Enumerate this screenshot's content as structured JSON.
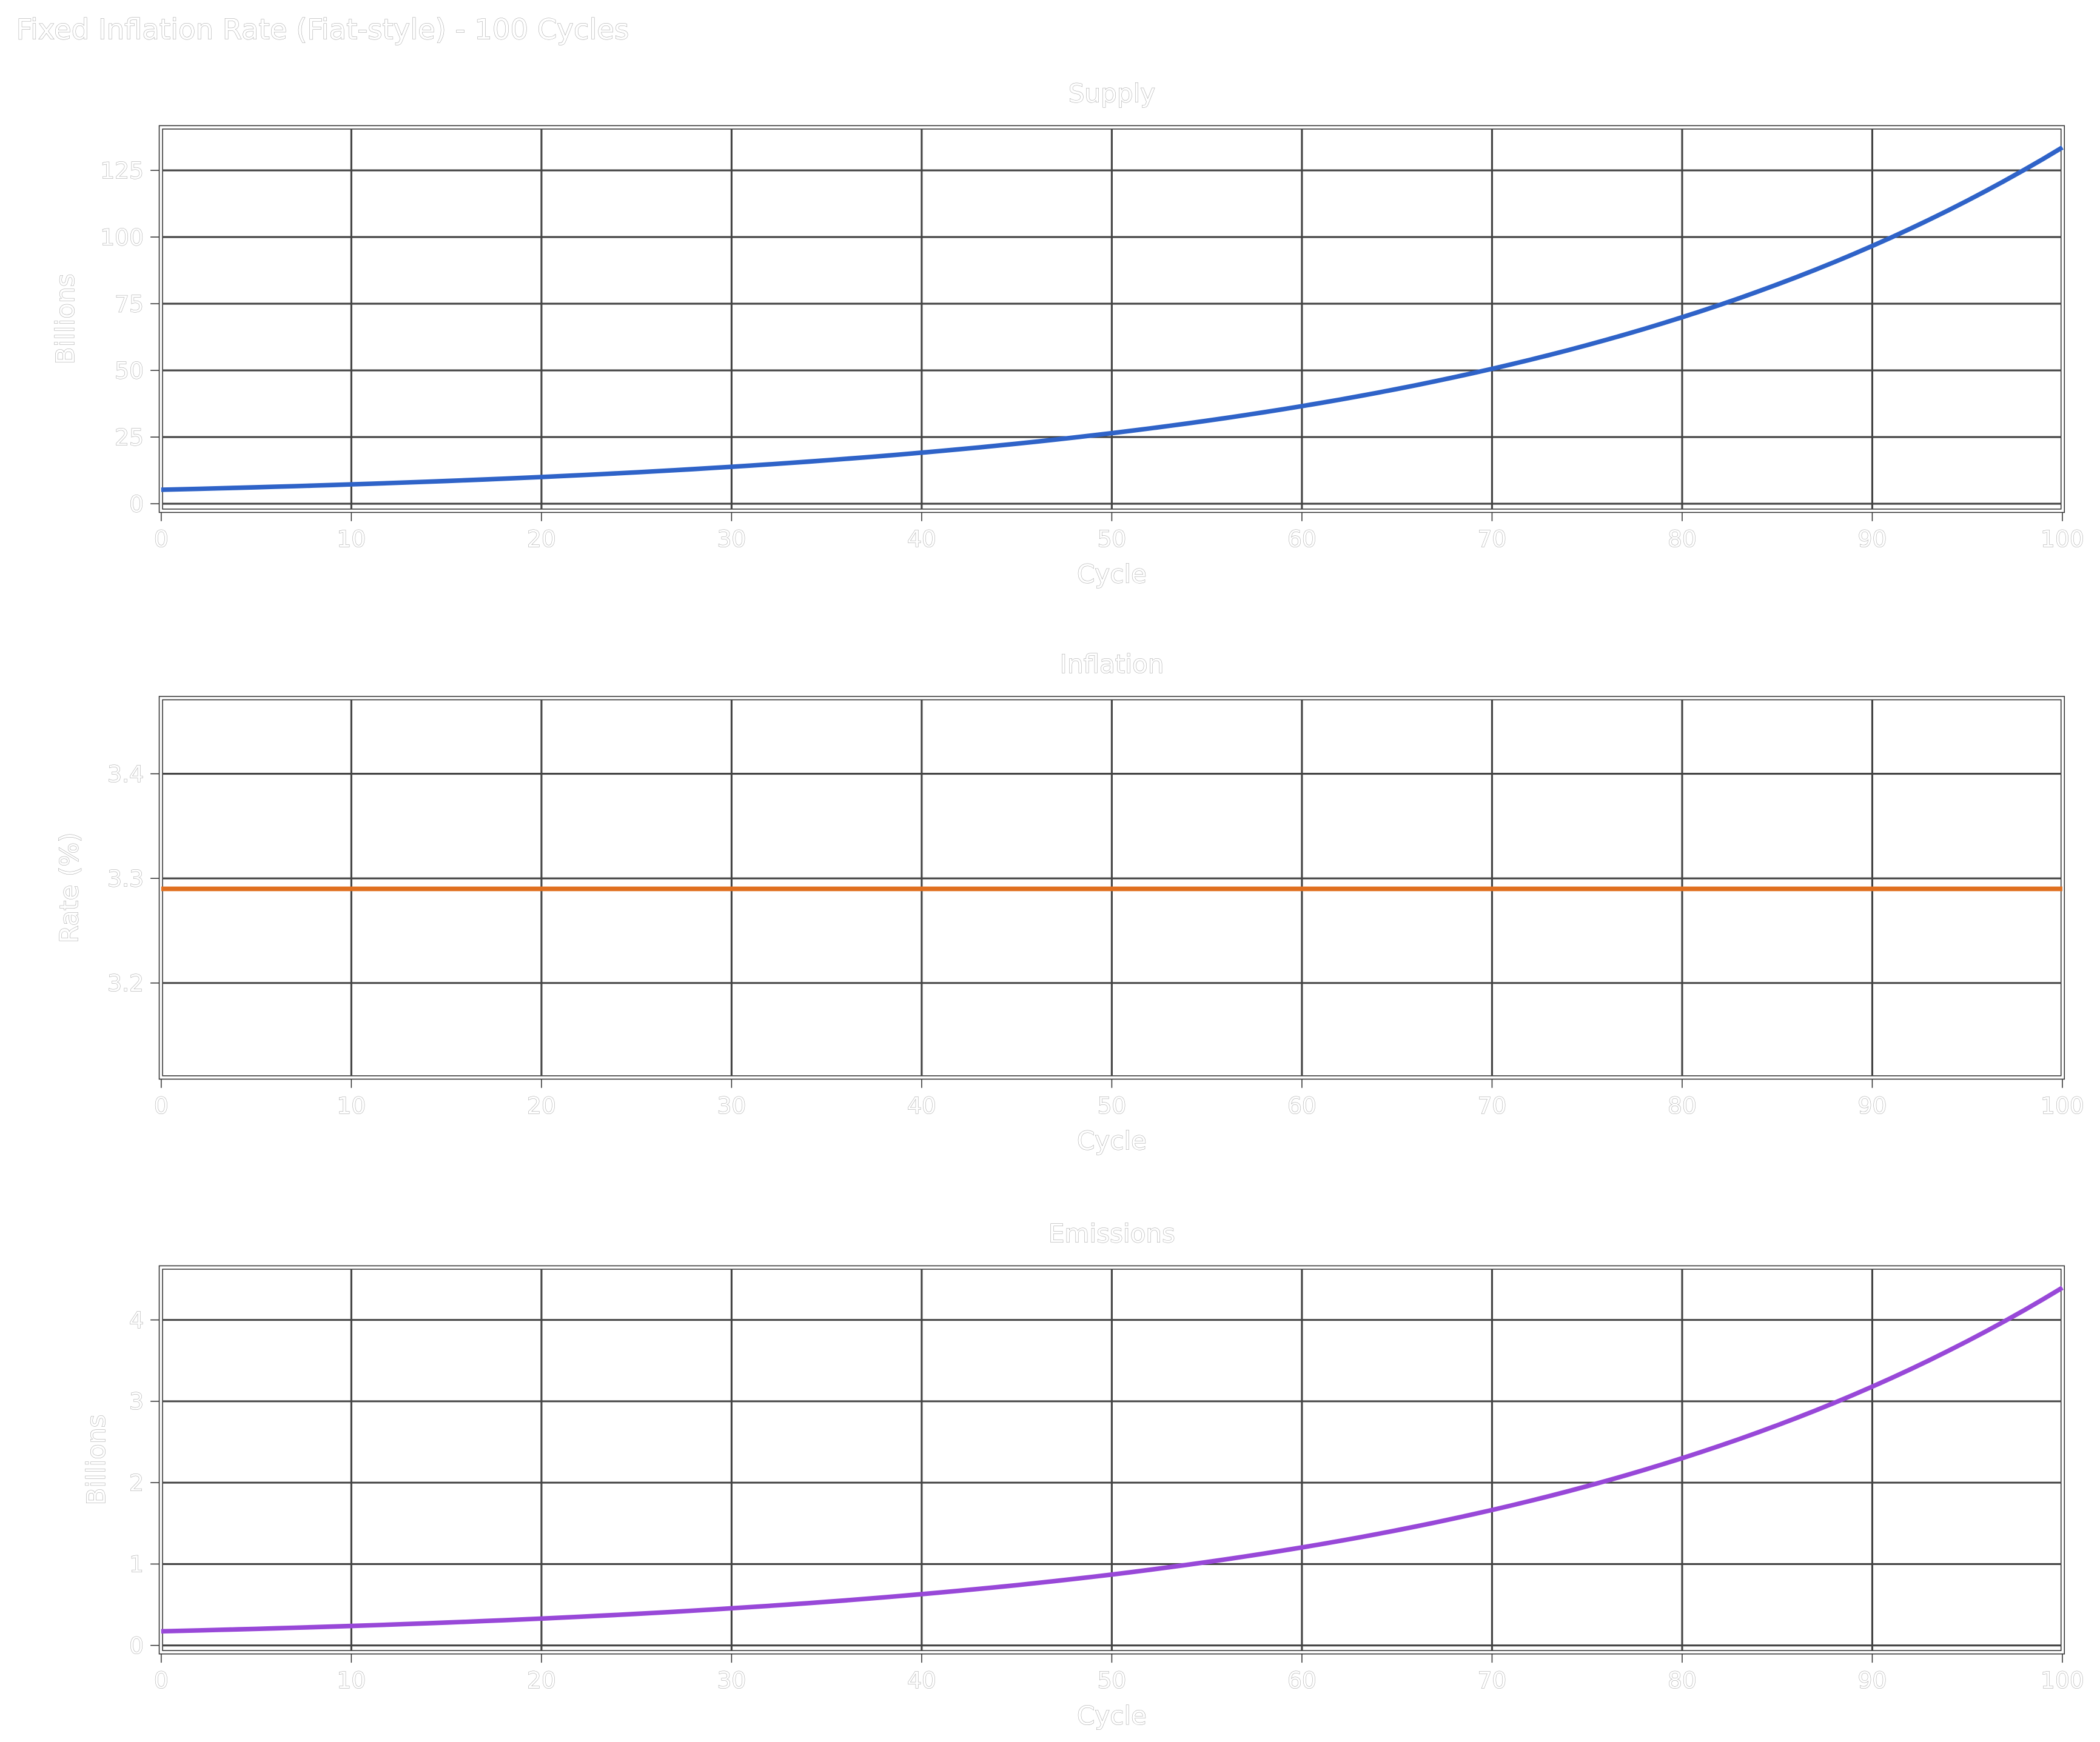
{
  "figure_title": "Fixed Inflation Rate (Fiat-style) - 100 Cycles",
  "chart_data": [
    {
      "type": "line",
      "title": "Supply",
      "xlabel": "Cycle",
      "ylabel": "Billions",
      "xlim": [
        0,
        100
      ],
      "ylim": [
        -2.5,
        141
      ],
      "xticks": [
        "0",
        "10",
        "20",
        "30",
        "40",
        "50",
        "60",
        "70",
        "80",
        "90",
        "100"
      ],
      "yticks": [
        "0",
        "25",
        "50",
        "75",
        "100",
        "125"
      ],
      "grid": true,
      "color": "#2f63c8",
      "x": [
        0,
        10,
        20,
        30,
        40,
        50,
        60,
        70,
        80,
        90,
        100
      ],
      "y": [
        5.25,
        7.26,
        10.03,
        13.86,
        19.16,
        26.48,
        36.6,
        50.59,
        69.93,
        96.66,
        133.6
      ]
    },
    {
      "type": "line",
      "title": "Inflation",
      "xlabel": "Cycle",
      "ylabel": "Rate (%)",
      "xlim": [
        0,
        100
      ],
      "ylim": [
        3.11,
        3.472
      ],
      "xticks": [
        "0",
        "10",
        "20",
        "30",
        "40",
        "50",
        "60",
        "70",
        "80",
        "90",
        "100"
      ],
      "yticks": [
        "3.2",
        "3.3",
        "3.4"
      ],
      "grid": true,
      "color": "#e07020",
      "x": [
        0,
        10,
        20,
        30,
        40,
        50,
        60,
        70,
        80,
        90,
        100
      ],
      "y": [
        3.29,
        3.29,
        3.29,
        3.29,
        3.29,
        3.29,
        3.29,
        3.29,
        3.29,
        3.29,
        3.29
      ]
    },
    {
      "type": "line",
      "title": "Emissions",
      "xlabel": "Cycle",
      "ylabel": "Billions",
      "xlim": [
        0,
        100
      ],
      "ylim": [
        -0.08,
        4.64
      ],
      "xticks": [
        "0",
        "10",
        "20",
        "30",
        "40",
        "50",
        "60",
        "70",
        "80",
        "90",
        "100"
      ],
      "yticks": [
        "0",
        "1",
        "2",
        "3",
        "4"
      ],
      "grid": true,
      "color": "#9848d8",
      "x": [
        0,
        10,
        20,
        30,
        40,
        50,
        60,
        70,
        80,
        90,
        100
      ],
      "y": [
        0.173,
        0.239,
        0.33,
        0.456,
        0.63,
        0.871,
        1.204,
        1.664,
        2.301,
        3.18,
        4.396
      ]
    }
  ]
}
